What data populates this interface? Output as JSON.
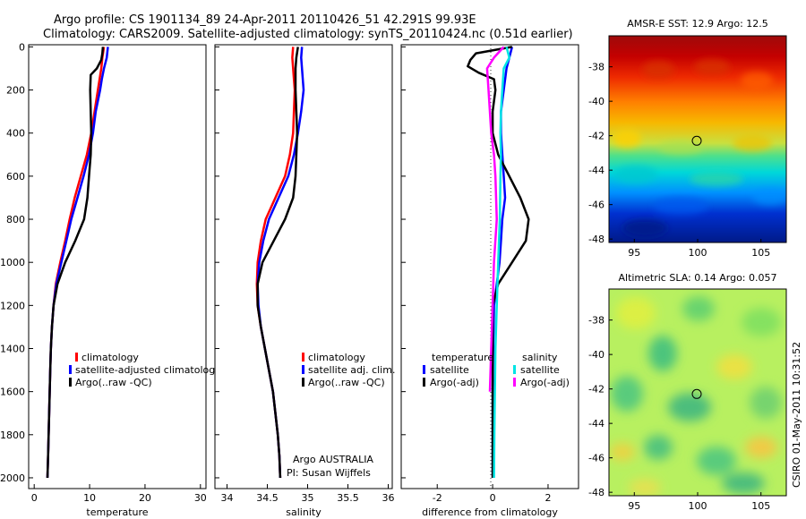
{
  "title": {
    "line1": "Argo profile: CS 1901134_89 24-Apr-2011 20110426_51 42.291S 99.93E",
    "line2": "Climatology: CARS2009. Satellite-adjusted climatology: synTS_20110424.nc (0.51d earlier)"
  },
  "colors": {
    "climatology": "#ff0000",
    "satellite": "#0000ff",
    "argo": "#000000",
    "sal_satellite": "#00e5e5",
    "sal_argo": "#ff00ff"
  },
  "depth_ticks": [
    "0",
    "200",
    "400",
    "600",
    "800",
    "1000",
    "1200",
    "1400",
    "1600",
    "1800",
    "2000"
  ],
  "panels": {
    "temperature": {
      "xlabel": "temperature",
      "xticks": [
        "0",
        "10",
        "20",
        "30"
      ],
      "legend": [
        "climatology",
        "satellite-adjusted climatology",
        "Argo(..raw -QC)"
      ]
    },
    "salinity": {
      "xlabel": "salinity",
      "xticks": [
        "34",
        "34.5",
        "35",
        "35.5",
        "36"
      ],
      "legend": [
        "climatology",
        "satellite adj. clim.",
        "Argo(..raw -QC)"
      ],
      "note1": "Argo AUSTRALIA",
      "note2": "PI: Susan Wijffels"
    },
    "difference": {
      "xlabel": "difference from climatology",
      "xticks": [
        "-2",
        "0",
        "2"
      ],
      "temp_header": "temperature",
      "sal_header": "salinity",
      "temp_legend": [
        "satellite",
        "Argo(-adj)"
      ],
      "sal_legend": [
        "satellite",
        "Argo(-adj)"
      ]
    }
  },
  "maps": {
    "sst": {
      "title": "AMSR-E SST: 12.9 Argo: 12.5",
      "yticks": [
        "-38",
        "-40",
        "-42",
        "-44",
        "-46",
        "-48"
      ],
      "xticks": [
        "95",
        "100",
        "105"
      ]
    },
    "sla": {
      "title": "Altimetric SLA: 0.14 Argo: 0.057",
      "yticks": [
        "-38",
        "-40",
        "-42",
        "-44",
        "-46",
        "-48"
      ],
      "xticks": [
        "95",
        "100",
        "105"
      ]
    }
  },
  "side_label": "CSIRO 01-May-2011 10:31:52",
  "chart_data": [
    {
      "type": "line",
      "title": "temperature",
      "xlabel": "temperature",
      "ylabel": "depth",
      "xlim": [
        -1,
        31
      ],
      "ylim": [
        2050,
        -10
      ],
      "series": [
        {
          "name": "climatology",
          "depth": [
            0,
            50,
            100,
            150,
            200,
            300,
            400,
            500,
            600,
            700,
            800,
            900,
            1000,
            1100,
            1200,
            1300,
            1400,
            1500,
            1600,
            1700,
            1800,
            1900,
            2000
          ],
          "values": [
            12.6,
            12.3,
            12.1,
            11.8,
            11.5,
            10.9,
            10.3,
            9.5,
            8.4,
            7.3,
            6.4,
            5.6,
            4.7,
            3.9,
            3.5,
            3.2,
            3.0,
            2.9,
            2.8,
            2.7,
            2.6,
            2.5,
            2.4
          ]
        },
        {
          "name": "satellite-adjusted climatology",
          "depth": [
            0,
            50,
            100,
            150,
            200,
            300,
            400,
            500,
            600,
            700,
            800,
            900,
            1000,
            1100,
            1200,
            1300,
            1400,
            1500,
            1600,
            1700,
            1800,
            1900,
            2000
          ],
          "values": [
            13.3,
            13.1,
            12.6,
            12.2,
            11.9,
            11.1,
            10.6,
            9.9,
            8.9,
            7.8,
            6.7,
            5.8,
            4.9,
            4.0,
            3.5,
            3.2,
            3.0,
            2.9,
            2.8,
            2.7,
            2.6,
            2.5,
            2.4
          ]
        },
        {
          "name": "Argo(..raw -QC)",
          "depth": [
            0,
            30,
            60,
            100,
            130,
            200,
            300,
            400,
            500,
            600,
            700,
            800,
            900,
            1000,
            1100,
            1200,
            1300,
            1400,
            1500,
            1600,
            1700,
            1800,
            1900,
            2000
          ],
          "values": [
            12.4,
            12.3,
            12.1,
            11.3,
            10.2,
            10.1,
            10.2,
            10.3,
            10.2,
            9.9,
            9.6,
            9.0,
            7.4,
            5.6,
            4.2,
            3.5,
            3.2,
            3.0,
            2.9,
            2.8,
            2.7,
            2.6,
            2.5,
            2.4
          ]
        }
      ]
    },
    {
      "type": "line",
      "title": "salinity",
      "xlabel": "salinity",
      "ylabel": "depth",
      "xlim": [
        33.85,
        36.05
      ],
      "ylim": [
        2050,
        -10
      ],
      "series": [
        {
          "name": "climatology",
          "depth": [
            0,
            50,
            100,
            200,
            300,
            400,
            500,
            600,
            700,
            800,
            900,
            1000,
            1100,
            1200,
            1300,
            1400,
            1500,
            1600,
            1700,
            1800,
            1900,
            2000
          ],
          "values": [
            34.82,
            34.81,
            34.82,
            34.84,
            34.83,
            34.82,
            34.78,
            34.72,
            34.6,
            34.48,
            34.42,
            34.38,
            34.37,
            34.38,
            34.42,
            34.47,
            34.52,
            34.57,
            34.6,
            34.63,
            34.65,
            34.66
          ]
        },
        {
          "name": "satellite adj. clim.",
          "depth": [
            0,
            50,
            100,
            200,
            300,
            400,
            500,
            600,
            700,
            800,
            900,
            1000,
            1100,
            1200,
            1300,
            1400,
            1500,
            1600,
            1700,
            1800,
            1900,
            2000
          ],
          "values": [
            34.93,
            34.92,
            34.93,
            34.95,
            34.92,
            34.88,
            34.83,
            34.76,
            34.64,
            34.52,
            34.45,
            34.4,
            34.38,
            34.39,
            34.42,
            34.47,
            34.52,
            34.57,
            34.6,
            34.63,
            34.65,
            34.66
          ]
        },
        {
          "name": "Argo(..raw -QC)",
          "depth": [
            0,
            50,
            100,
            200,
            300,
            400,
            500,
            600,
            700,
            800,
            900,
            1000,
            1100,
            1200,
            1300,
            1400,
            1500,
            1600,
            1700,
            1800,
            1900,
            2000
          ],
          "values": [
            34.88,
            34.86,
            34.85,
            34.85,
            34.86,
            34.87,
            34.86,
            34.85,
            34.82,
            34.72,
            34.58,
            34.44,
            34.38,
            34.38,
            34.42,
            34.47,
            34.52,
            34.57,
            34.6,
            34.63,
            34.65,
            34.66
          ]
        }
      ]
    },
    {
      "type": "line",
      "title": "difference from climatology",
      "xlabel": "difference from climatology",
      "ylabel": "depth",
      "xlim": [
        -3.3,
        3.1
      ],
      "ylim": [
        2050,
        -10
      ],
      "series": [
        {
          "name": "temperature satellite",
          "depth": [
            0,
            50,
            100,
            200,
            300,
            400,
            500,
            600,
            700,
            800,
            900,
            1000,
            1100,
            1200,
            1400,
            1600,
            1800,
            2000
          ],
          "values": [
            0.7,
            0.6,
            0.5,
            0.4,
            0.3,
            0.3,
            0.35,
            0.4,
            0.45,
            0.35,
            0.3,
            0.25,
            0.15,
            0.05,
            0.02,
            0.0,
            0.0,
            0.0
          ]
        },
        {
          "name": "temperature Argo(-adj)",
          "depth": [
            0,
            30,
            60,
            90,
            120,
            150,
            200,
            300,
            400,
            500,
            600,
            700,
            800,
            900,
            1000,
            1100,
            1200,
            1300,
            1400,
            1600,
            1800,
            2000
          ],
          "values": [
            0.7,
            -0.6,
            -0.8,
            -0.9,
            -0.5,
            0.05,
            0.1,
            0.0,
            0.0,
            0.2,
            0.6,
            1.0,
            1.3,
            1.2,
            0.7,
            0.2,
            0.0,
            0.0,
            0.0,
            0.0,
            0.0,
            0.0
          ]
        },
        {
          "name": "salinity satellite",
          "depth": [
            0,
            50,
            100,
            200,
            300,
            400,
            500,
            600,
            800,
            1000,
            1200,
            1400,
            1600,
            1800,
            2000
          ],
          "values": [
            0.5,
            0.6,
            0.4,
            0.35,
            0.3,
            0.28,
            0.3,
            0.28,
            0.26,
            0.2,
            0.15,
            0.1,
            0.08,
            0.06,
            0.05
          ]
        },
        {
          "name": "salinity Argo(-adj)",
          "depth": [
            0,
            50,
            100,
            200,
            300,
            400,
            500,
            600,
            800,
            1000,
            1200,
            1400,
            1600
          ],
          "values": [
            0.4,
            0.05,
            -0.2,
            -0.15,
            -0.1,
            -0.05,
            0.05,
            0.1,
            0.15,
            0.05,
            0.0,
            -0.05,
            -0.1
          ]
        }
      ]
    },
    {
      "type": "heatmap",
      "title": "AMSR-E SST: 12.9 Argo: 12.5",
      "xlim": [
        93,
        107
      ],
      "ylim": [
        -48.2,
        -36.2
      ],
      "marker": {
        "lon": 99.93,
        "lat": -42.291
      }
    },
    {
      "type": "heatmap",
      "title": "Altimetric SLA: 0.14 Argo: 0.057",
      "xlim": [
        93,
        107
      ],
      "ylim": [
        -48.2,
        -36.2
      ],
      "marker": {
        "lon": 99.93,
        "lat": -42.291
      }
    }
  ]
}
